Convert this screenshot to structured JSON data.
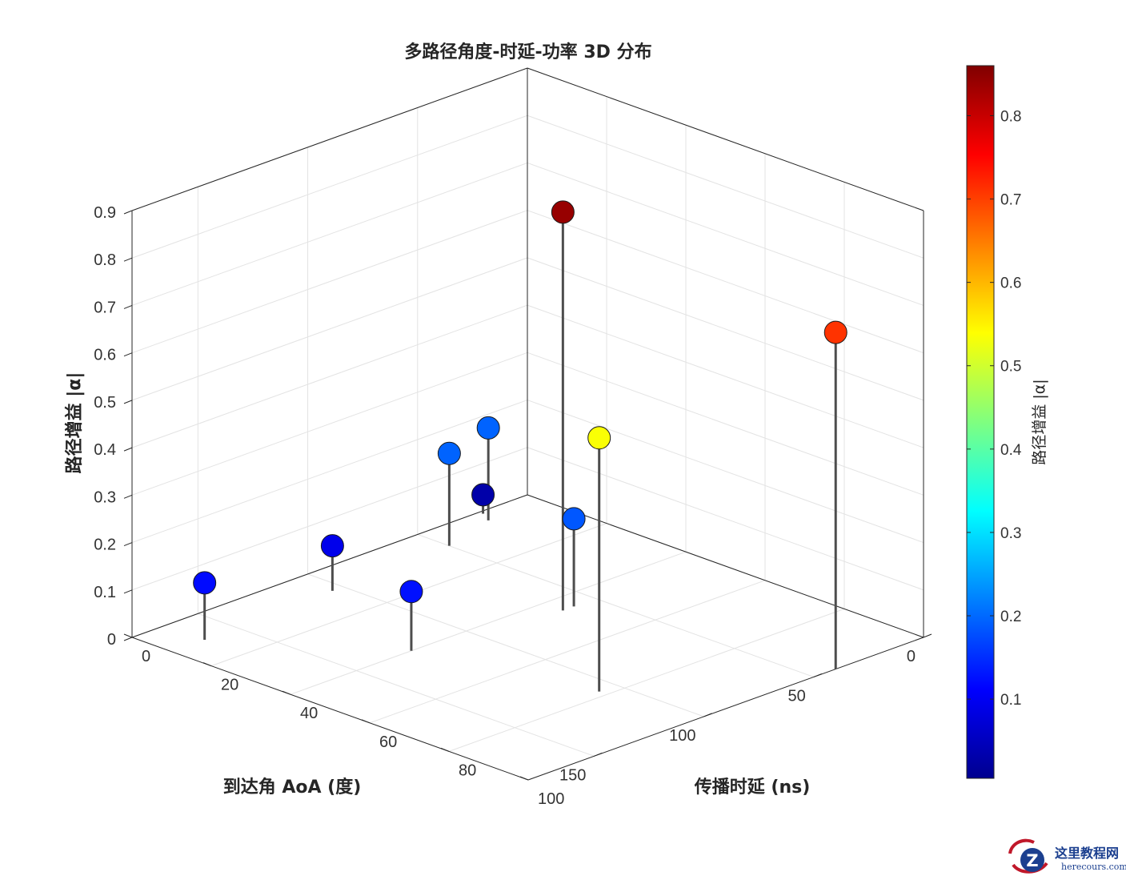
{
  "chart_data": {
    "type": "scatter3d-stem",
    "title": "多路径角度-时延-功率 3D 分布",
    "xlabel": "传播时延 (ns)",
    "ylabel": "到达角 AoA (度)",
    "zlabel": "路径增益 |α|",
    "xlim": [
      0,
      100
    ],
    "ylim": [
      0,
      180
    ],
    "zlim": [
      0,
      0.9
    ],
    "xticks": [
      "0",
      "20",
      "40",
      "60",
      "80",
      "100"
    ],
    "yticks": [
      "0",
      "50",
      "100",
      "150"
    ],
    "zticks": [
      "0",
      "0.1",
      "0.2",
      "0.3",
      "0.4",
      "0.5",
      "0.6",
      "0.7",
      "0.8",
      "0.9"
    ],
    "grid": true,
    "colormap": "jet",
    "colorbar": {
      "label": "路径增益 |α|",
      "range": [
        0.005,
        0.86
      ],
      "ticks": [
        "0.1",
        "0.2",
        "0.3",
        "0.4",
        "0.5",
        "0.6",
        "0.7",
        "0.8"
      ]
    },
    "points": [
      {
        "delay": 1,
        "aoa": 22,
        "gain": 0.04
      },
      {
        "delay": 4,
        "aoa": 25,
        "gain": 0.195
      },
      {
        "delay": 8,
        "aoa": 50,
        "gain": 0.195
      },
      {
        "delay": 9,
        "aoa": 105,
        "gain": 0.095
      },
      {
        "delay": 45,
        "aoa": 60,
        "gain": 0.185
      },
      {
        "delay": 45,
        "aoa": 65,
        "gain": 0.84
      },
      {
        "delay": 10,
        "aoa": 165,
        "gain": 0.12
      },
      {
        "delay": 40,
        "aoa": 125,
        "gain": 0.125
      },
      {
        "delay": 100,
        "aoa": 40,
        "gain": 0.71
      },
      {
        "delay": 78,
        "aoa": 108,
        "gain": 0.535
      }
    ]
  },
  "watermark": {
    "name": "这里教程网",
    "url": "herecours.com"
  }
}
